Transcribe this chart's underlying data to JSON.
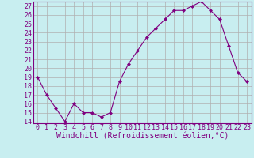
{
  "x": [
    0,
    1,
    2,
    3,
    4,
    5,
    6,
    7,
    8,
    9,
    10,
    11,
    12,
    13,
    14,
    15,
    16,
    17,
    18,
    19,
    20,
    21,
    22,
    23
  ],
  "y": [
    19,
    17,
    15.5,
    14,
    16,
    15,
    15,
    14.5,
    15,
    18.5,
    20.5,
    22,
    23.5,
    24.5,
    25.5,
    26.5,
    26.5,
    27,
    27.5,
    26.5,
    25.5,
    22.5,
    19.5,
    18.5
  ],
  "line_color": "#800080",
  "marker": "D",
  "marker_size": 2,
  "bg_color": "#c8eef0",
  "grid_color": "#b0b0b0",
  "xlabel": "Windchill (Refroidissement éolien,°C)",
  "xlabel_color": "#800080",
  "xlabel_fontsize": 7,
  "tick_color": "#800080",
  "tick_fontsize": 6,
  "ylim": [
    14,
    27
  ],
  "yticks": [
    14,
    15,
    16,
    17,
    18,
    19,
    20,
    21,
    22,
    23,
    24,
    25,
    26,
    27
  ],
  "xticks": [
    0,
    1,
    2,
    3,
    4,
    5,
    6,
    7,
    8,
    9,
    10,
    11,
    12,
    13,
    14,
    15,
    16,
    17,
    18,
    19,
    20,
    21,
    22,
    23
  ]
}
